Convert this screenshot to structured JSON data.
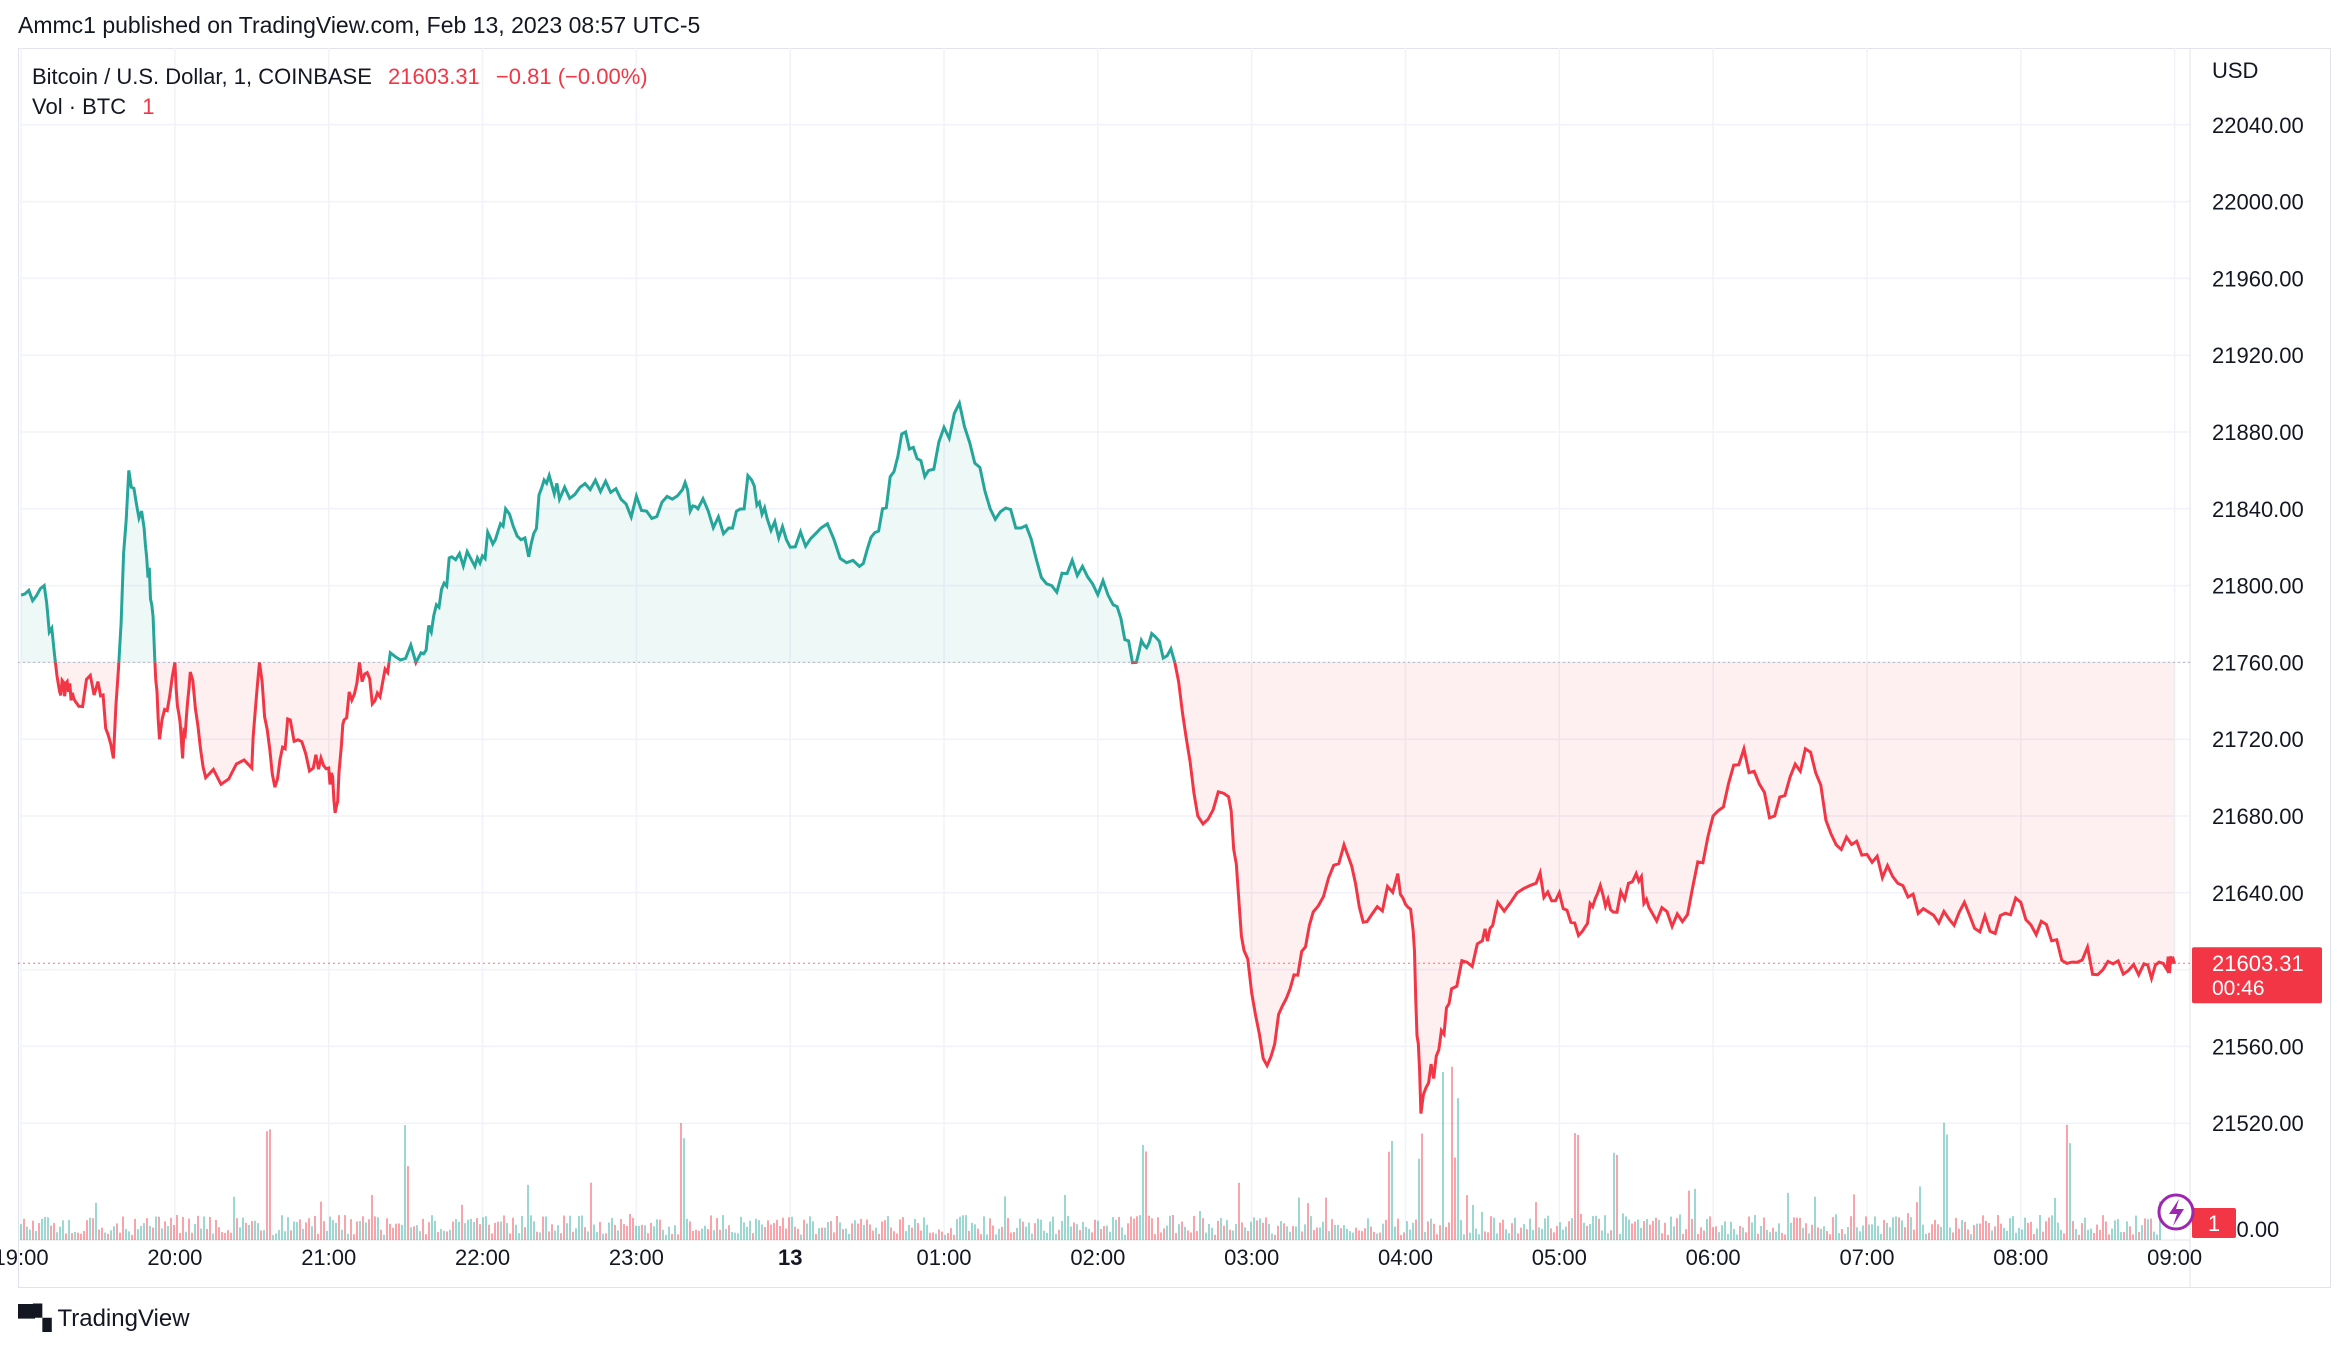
{
  "header": {
    "published": "Ammc1 published on TradingView.com, Feb 13, 2023 08:57 UTC-5"
  },
  "legend": {
    "symbol": "Bitcoin / U.S. Dollar, 1, COINBASE",
    "price": "21603.31",
    "change": "−0.81 (−0.00%)",
    "volume_label": "Vol · BTC",
    "volume_value": "1"
  },
  "price_axis": {
    "currency": "USD",
    "last_price_label": "21603.31",
    "countdown": "00:46",
    "volume_marker": "1",
    "volume_axis_label": "440.00"
  },
  "footer": {
    "brand": "TradingView"
  },
  "colors": {
    "up": "#26a69a",
    "down": "#f23645",
    "grid": "#f0f3fa",
    "axis_text": "#131722",
    "last_price_badge": "#f23645"
  },
  "chart_data": {
    "type": "line",
    "subtype": "baseline",
    "baseline": 21760,
    "ylim": [
      21480,
      22080
    ],
    "y_ticks": [
      21520,
      21560,
      21600,
      21640,
      21680,
      21720,
      21760,
      21800,
      21840,
      21880,
      21920,
      21960,
      22000,
      22040
    ],
    "y_tick_labels": [
      "21520.00",
      "21560.00",
      "21600.00",
      "21640.00",
      "21680.00",
      "21720.00",
      "21760.00",
      "21800.00",
      "21840.00",
      "21880.00",
      "21920.00",
      "21960.00",
      "22000.00",
      "22040.00"
    ],
    "x_ticks": [
      "19:00",
      "20:00",
      "21:00",
      "22:00",
      "23:00",
      "13",
      "01:00",
      "02:00",
      "03:00",
      "04:00",
      "05:00",
      "06:00",
      "07:00",
      "08:00",
      "09:00"
    ],
    "x_time_hours": [
      0,
      1,
      2,
      3,
      4,
      5,
      6,
      7,
      8,
      9,
      10,
      11,
      12,
      13,
      14
    ],
    "grid": true,
    "series": [
      {
        "values_x_hours": [
          0,
          0.15,
          0.25,
          0.3,
          0.35,
          0.5,
          0.6,
          0.7,
          0.8,
          0.85,
          0.9,
          1.0,
          1.05,
          1.1,
          1.2,
          1.5,
          1.55,
          1.65,
          1.75,
          1.9,
          2.0,
          2.05,
          2.1,
          2.2,
          2.3,
          2.4,
          2.6,
          2.7,
          2.8,
          2.95,
          3.05,
          3.15,
          3.3,
          3.4,
          3.5,
          3.7,
          3.9,
          4.1,
          4.3,
          4.4,
          4.6,
          4.75,
          4.85,
          5.0,
          5.2,
          5.45,
          5.6,
          5.75,
          5.9,
          6.1,
          6.3,
          6.5,
          6.7,
          6.9,
          7.1,
          7.25,
          7.35,
          7.5,
          7.65,
          7.85,
          7.95,
          8.1,
          8.25,
          8.4,
          8.6,
          8.75,
          8.95,
          9.05,
          9.1,
          9.2,
          9.3,
          9.5,
          9.6,
          9.85,
          10.0,
          10.15,
          10.25,
          10.35,
          10.5,
          10.6,
          10.8,
          11.0,
          11.2,
          11.4,
          11.6,
          11.8,
          12.0,
          12.2,
          12.4,
          12.6,
          12.8,
          13.0,
          13.2,
          13.4,
          13.6,
          13.8,
          13.95,
          14.0
        ],
        "values_y": [
          21795,
          21800,
          21745,
          21750,
          21740,
          21750,
          21710,
          21860,
          21830,
          21790,
          21720,
          21760,
          21710,
          21755,
          21700,
          21705,
          21760,
          21695,
          21730,
          21705,
          21705,
          21685,
          21730,
          21760,
          21740,
          21765,
          21765,
          21790,
          21815,
          21810,
          21825,
          21840,
          21815,
          21855,
          21845,
          21850,
          21845,
          21835,
          21850,
          21840,
          21830,
          21855,
          21835,
          21820,
          21830,
          21810,
          21840,
          21880,
          21860,
          21895,
          21840,
          21830,
          21800,
          21810,
          21790,
          21760,
          21775,
          21760,
          21680,
          21690,
          21610,
          21550,
          21590,
          21630,
          21665,
          21625,
          21650,
          21620,
          21525,
          21555,
          21590,
          21615,
          21635,
          21645,
          21640,
          21620,
          21640,
          21630,
          21650,
          21630,
          21625,
          21680,
          21715,
          21680,
          21715,
          21665,
          21660,
          21645,
          21630,
          21630,
          21620,
          21635,
          21615,
          21605,
          21603,
          21603,
          21600,
          21603
        ]
      },
      {
        "name": "Vol · BTC",
        "type": "bar",
        "note": "volume histogram at bottom, small values; scale max approx 440 BTC at label",
        "spikes_hours": [
          1.6,
          2.5,
          4.3,
          7.3,
          8.9,
          9.1,
          9.3,
          10.1,
          10.35,
          12.5,
          13.3
        ]
      }
    ],
    "last_price": 21603.31
  }
}
